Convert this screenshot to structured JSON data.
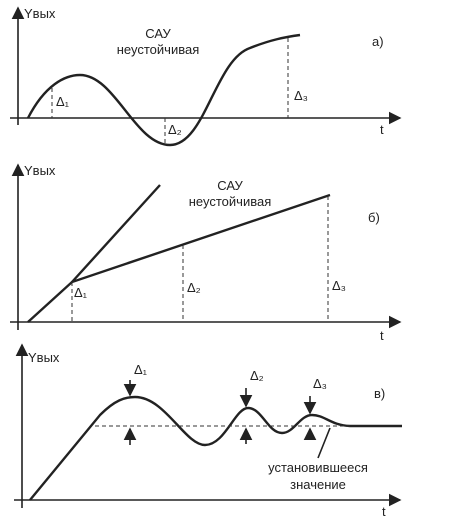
{
  "panels": [
    {
      "y_axis": "Yвых",
      "x_axis": "t",
      "label_top": "САУ",
      "label_bottom": "неустойчивая",
      "tag": "а)",
      "deltas": [
        "Δ₁",
        "Δ₂",
        "Δ₃"
      ]
    },
    {
      "y_axis": "Yвых",
      "x_axis": "t",
      "label_top": "САУ",
      "label_bottom": "неустойчивая",
      "tag": "б)",
      "deltas": [
        "Δ₁",
        "Δ₂",
        "Δ₃"
      ]
    },
    {
      "y_axis": "Yвых",
      "x_axis": "t",
      "label_top": "установившееся",
      "label_bottom": "значение",
      "tag": "в)",
      "deltas": [
        "Δ₁",
        "Δ₂",
        "Δ₃"
      ]
    }
  ]
}
